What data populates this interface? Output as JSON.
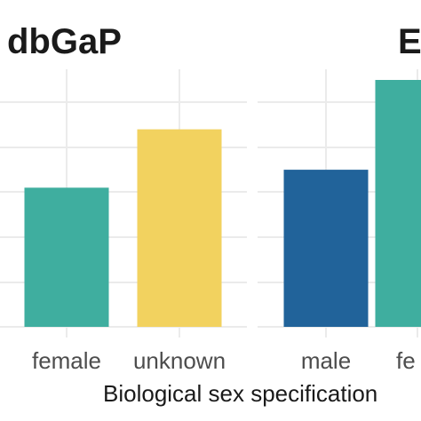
{
  "chart_data": {
    "type": "bar",
    "xlabel": "Biological sex specification",
    "ylabel": "",
    "grid": true,
    "panels": [
      {
        "title": "dbGaP",
        "categories": [
          "female",
          "unknown"
        ],
        "values": [
          3.1,
          4.4
        ],
        "colors": [
          "#3fae9f",
          "#f2d25f"
        ]
      },
      {
        "title": "E",
        "categories": [
          "male",
          "fe"
        ],
        "values": [
          3.5,
          5.5
        ],
        "colors": [
          "#21639a",
          "#3fae9f"
        ]
      }
    ],
    "ylim": [
      0,
      5.5
    ]
  }
}
